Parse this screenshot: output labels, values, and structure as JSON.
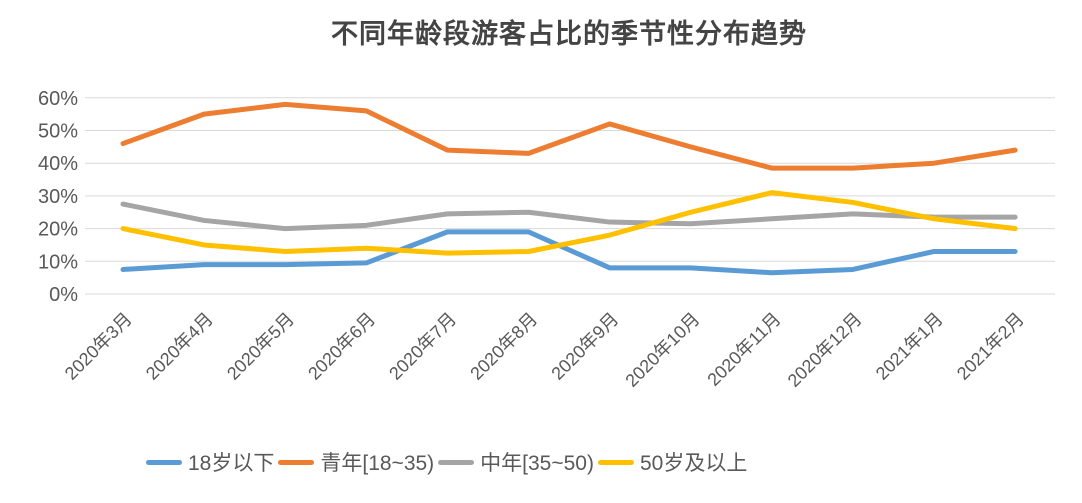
{
  "title": "不同年龄段游客占比的季节性分布趋势",
  "chart_data": {
    "type": "line",
    "title": "不同年龄段游客占比的季节性分布趋势",
    "categories": [
      "2020年3月",
      "2020年4月",
      "2020年5月",
      "2020年6月",
      "2020年7月",
      "2020年8月",
      "2020年9月",
      "2020年10月",
      "2020年11月",
      "2020年12月",
      "2021年1月",
      "2021年2月"
    ],
    "series": [
      {
        "name": "18岁以下",
        "color": "#5B9BD5",
        "values": [
          7.5,
          9,
          9,
          9.5,
          19,
          19,
          8,
          8,
          6.5,
          7.5,
          13,
          13
        ]
      },
      {
        "name": "青年[18~35)",
        "color": "#ED7D31",
        "values": [
          46,
          55,
          58,
          56,
          44,
          43,
          52,
          45,
          38.5,
          38.5,
          40,
          44
        ]
      },
      {
        "name": "中年[35~50)",
        "color": "#A5A5A5",
        "values": [
          27.5,
          22.5,
          20,
          21,
          24.5,
          25,
          22,
          21.5,
          23,
          24.5,
          23.5,
          23.5
        ]
      },
      {
        "name": "50岁及以上",
        "color": "#FFC000",
        "values": [
          20,
          15,
          13,
          14,
          12.5,
          13,
          18,
          25,
          31,
          28,
          23,
          20
        ]
      }
    ],
    "xlabel": "",
    "ylabel": "",
    "ylim": [
      0,
      60
    ],
    "ytick_step": 10,
    "yticks": [
      "0%",
      "10%",
      "20%",
      "30%",
      "40%",
      "50%",
      "60%"
    ],
    "ytick_format": "percent",
    "x_label_rotation": -45,
    "grid": true,
    "legend_position": "bottom"
  },
  "style": {
    "grid_color": "#D9D9D9",
    "axis_text_color": "#595959",
    "title_color": "#444444",
    "line_width": 5,
    "background": "#FFFFFF"
  }
}
